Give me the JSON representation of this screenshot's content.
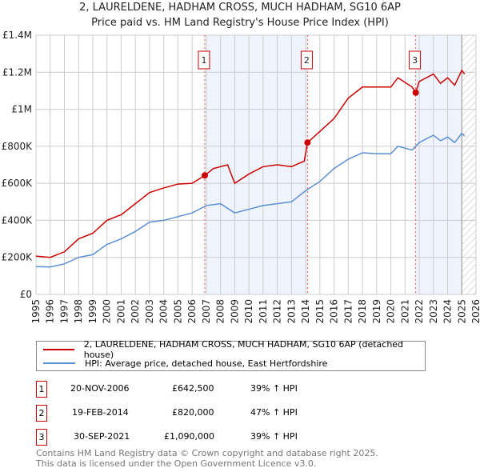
{
  "title": "2, LAURELDENE, HADHAM CROSS, MUCH HADHAM, SG10 6AP",
  "subtitle": "Price paid vs. HM Land Registry's House Price Index (HPI)",
  "colors": {
    "property": "#cc0000",
    "hpi": "#5b8fd4",
    "shade": "#eef3fc"
  },
  "chart_data": {
    "type": "line",
    "title": "2, LAURELDENE, HADHAM CROSS, MUCH HADHAM, SG10 6AP",
    "xlim": [
      1995,
      2026
    ],
    "ylim": [
      0,
      1400000
    ],
    "x_ticks": [
      "1995",
      "1996",
      "1997",
      "1998",
      "1999",
      "2000",
      "2001",
      "2002",
      "2003",
      "2004",
      "2005",
      "2006",
      "2007",
      "2008",
      "2009",
      "2010",
      "2011",
      "2012",
      "2013",
      "2014",
      "2015",
      "2016",
      "2017",
      "2018",
      "2019",
      "2020",
      "2021",
      "2022",
      "2023",
      "2024",
      "2025",
      "2026"
    ],
    "y_ticks": [
      {
        "v": 0,
        "label": "£0"
      },
      {
        "v": 200000,
        "label": "£200K"
      },
      {
        "v": 400000,
        "label": "£400K"
      },
      {
        "v": 600000,
        "label": "£600K"
      },
      {
        "v": 800000,
        "label": "£800K"
      },
      {
        "v": 1000000,
        "label": "£1M"
      },
      {
        "v": 1200000,
        "label": "£1.2M"
      },
      {
        "v": 1400000,
        "label": "£1.4M"
      }
    ],
    "grid": true,
    "series": [
      {
        "name": "2, LAURELDENE, HADHAM CROSS, MUCH HADHAM, SG10 6AP (detached house)",
        "x": [
          1995,
          1996,
          1997,
          1998,
          1999,
          2000,
          2001,
          2002,
          2003,
          2004,
          2005,
          2006,
          2006.89,
          2007.5,
          2008.5,
          2009,
          2010,
          2011,
          2012,
          2013,
          2013.9,
          2014.13,
          2015,
          2016,
          2017,
          2018,
          2019,
          2020,
          2020.5,
          2021.5,
          2021.75,
          2022,
          2023,
          2023.5,
          2024,
          2024.5,
          2025,
          2025.2
        ],
        "y": [
          207000,
          200000,
          230000,
          300000,
          330000,
          400000,
          430000,
          490000,
          550000,
          575000,
          596000,
          600000,
          642500,
          680000,
          700000,
          600000,
          650000,
          690000,
          700000,
          690000,
          720000,
          820000,
          880000,
          950000,
          1060000,
          1120000,
          1120000,
          1120000,
          1170000,
          1120000,
          1090000,
          1150000,
          1190000,
          1140000,
          1170000,
          1130000,
          1210000,
          1190000
        ]
      },
      {
        "name": "HPI: Average price, detached house, East Hertfordshire",
        "x": [
          1995,
          1996,
          1997,
          1998,
          1999,
          2000,
          2001,
          2002,
          2003,
          2004,
          2005,
          2006,
          2007,
          2008,
          2009,
          2010,
          2011,
          2012,
          2013,
          2014,
          2015,
          2016,
          2017,
          2018,
          2019,
          2020,
          2020.5,
          2021.5,
          2022,
          2023,
          2023.5,
          2024,
          2024.5,
          2025,
          2025.2
        ],
        "y": [
          150000,
          148000,
          165000,
          200000,
          215000,
          270000,
          300000,
          340000,
          390000,
          400000,
          420000,
          440000,
          480000,
          490000,
          440000,
          460000,
          480000,
          490000,
          500000,
          560000,
          610000,
          680000,
          730000,
          765000,
          760000,
          760000,
          800000,
          780000,
          820000,
          860000,
          830000,
          850000,
          820000,
          870000,
          855000
        ]
      }
    ],
    "sales": [
      {
        "n": "1",
        "x": 2006.89,
        "y": 642500
      },
      {
        "n": "2",
        "x": 2014.13,
        "y": 820000
      },
      {
        "n": "3",
        "x": 2021.75,
        "y": 1090000
      }
    ],
    "hatch_from": 2025.0
  },
  "legend": [
    {
      "label": "2, LAURELDENE, HADHAM CROSS, MUCH HADHAM, SG10 6AP (detached house)"
    },
    {
      "label": "HPI: Average price, detached house, East Hertfordshire"
    }
  ],
  "table": [
    {
      "n": "1",
      "date": "20-NOV-2006",
      "price": "£642,500",
      "delta": "39% ↑ HPI"
    },
    {
      "n": "2",
      "date": "19-FEB-2014",
      "price": "£820,000",
      "delta": "47% ↑ HPI"
    },
    {
      "n": "3",
      "date": "30-SEP-2021",
      "price": "£1,090,000",
      "delta": "39% ↑ HPI"
    }
  ],
  "footer": [
    "Contains HM Land Registry data © Crown copyright and database right 2025.",
    "This data is licensed under the Open Government Licence v3.0."
  ]
}
